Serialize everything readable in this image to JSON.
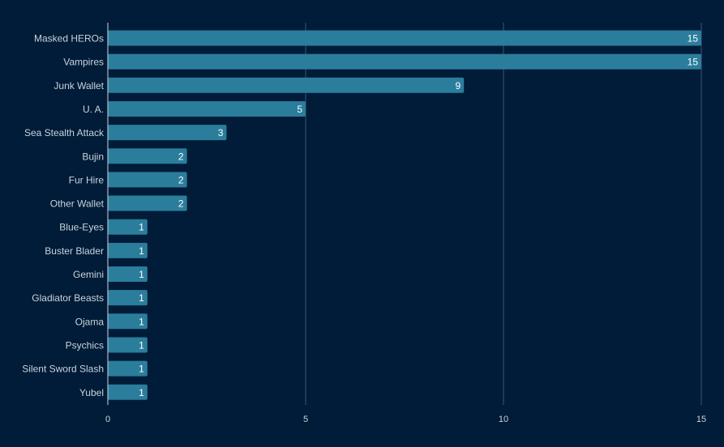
{
  "chart_data": {
    "type": "bar",
    "orientation": "horizontal",
    "categories": [
      "Masked HEROs",
      "Vampires",
      "Junk Wallet",
      "U. A.",
      "Sea Stealth Attack",
      "Bujin",
      "Fur Hire",
      "Other Wallet",
      "Blue-Eyes",
      "Buster Blader",
      "Gemini",
      "Gladiator Beasts",
      "Ojama",
      "Psychics",
      "Silent Sword Slash",
      "Yubel"
    ],
    "values": [
      15,
      15,
      9,
      5,
      3,
      2,
      2,
      2,
      1,
      1,
      1,
      1,
      1,
      1,
      1,
      1
    ],
    "xlim": [
      0,
      15
    ],
    "xticks": [
      0,
      5,
      10,
      15
    ],
    "grid": true,
    "title": "",
    "xlabel": "",
    "ylabel": "",
    "colors": {
      "background": "#011c38",
      "bar": "#2b7d9c",
      "grid": "#3c5670",
      "text": "#c8d3de",
      "data_label": "#ffffff"
    }
  }
}
